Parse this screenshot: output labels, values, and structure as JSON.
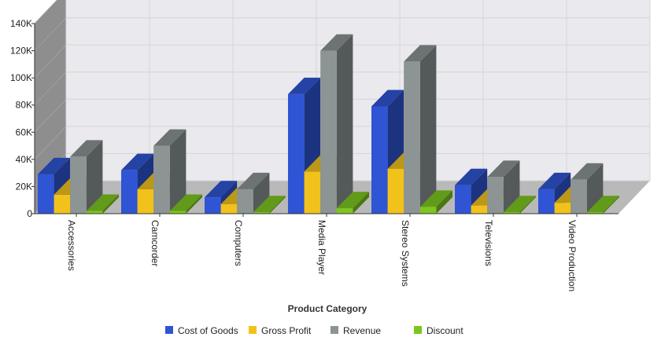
{
  "chart_data": {
    "type": "bar",
    "title": "",
    "xlabel": "Product Category",
    "ylabel": "",
    "ylim": [
      0,
      140000
    ],
    "yticks": [
      0,
      20000,
      40000,
      60000,
      80000,
      100000,
      120000,
      140000
    ],
    "ytick_labels": [
      "0",
      "20K",
      "40K",
      "60K",
      "80K",
      "100K",
      "120K",
      "140K"
    ],
    "grid": true,
    "three_d": true,
    "legend_position": "bottom",
    "categories": [
      "Accessories",
      "Camcorder",
      "Computers",
      "Media Player",
      "Stereo Systems",
      "Televisions",
      "Video Production"
    ],
    "series": [
      {
        "name": "Cost of Goods",
        "color": "#2f55d4",
        "values": [
          29000,
          32000,
          12000,
          88000,
          79000,
          21000,
          18000
        ]
      },
      {
        "name": "Gross Profit",
        "color": "#f2c21c",
        "values": [
          14000,
          18000,
          7000,
          31000,
          33000,
          6000,
          8000
        ]
      },
      {
        "name": "Revenue",
        "color": "#8c9494",
        "values": [
          42000,
          50000,
          18000,
          120000,
          112000,
          27000,
          25000
        ]
      },
      {
        "name": "Discount",
        "color": "#7dc520",
        "values": [
          2000,
          2000,
          1000,
          4000,
          5000,
          1000,
          1000
        ]
      }
    ]
  }
}
